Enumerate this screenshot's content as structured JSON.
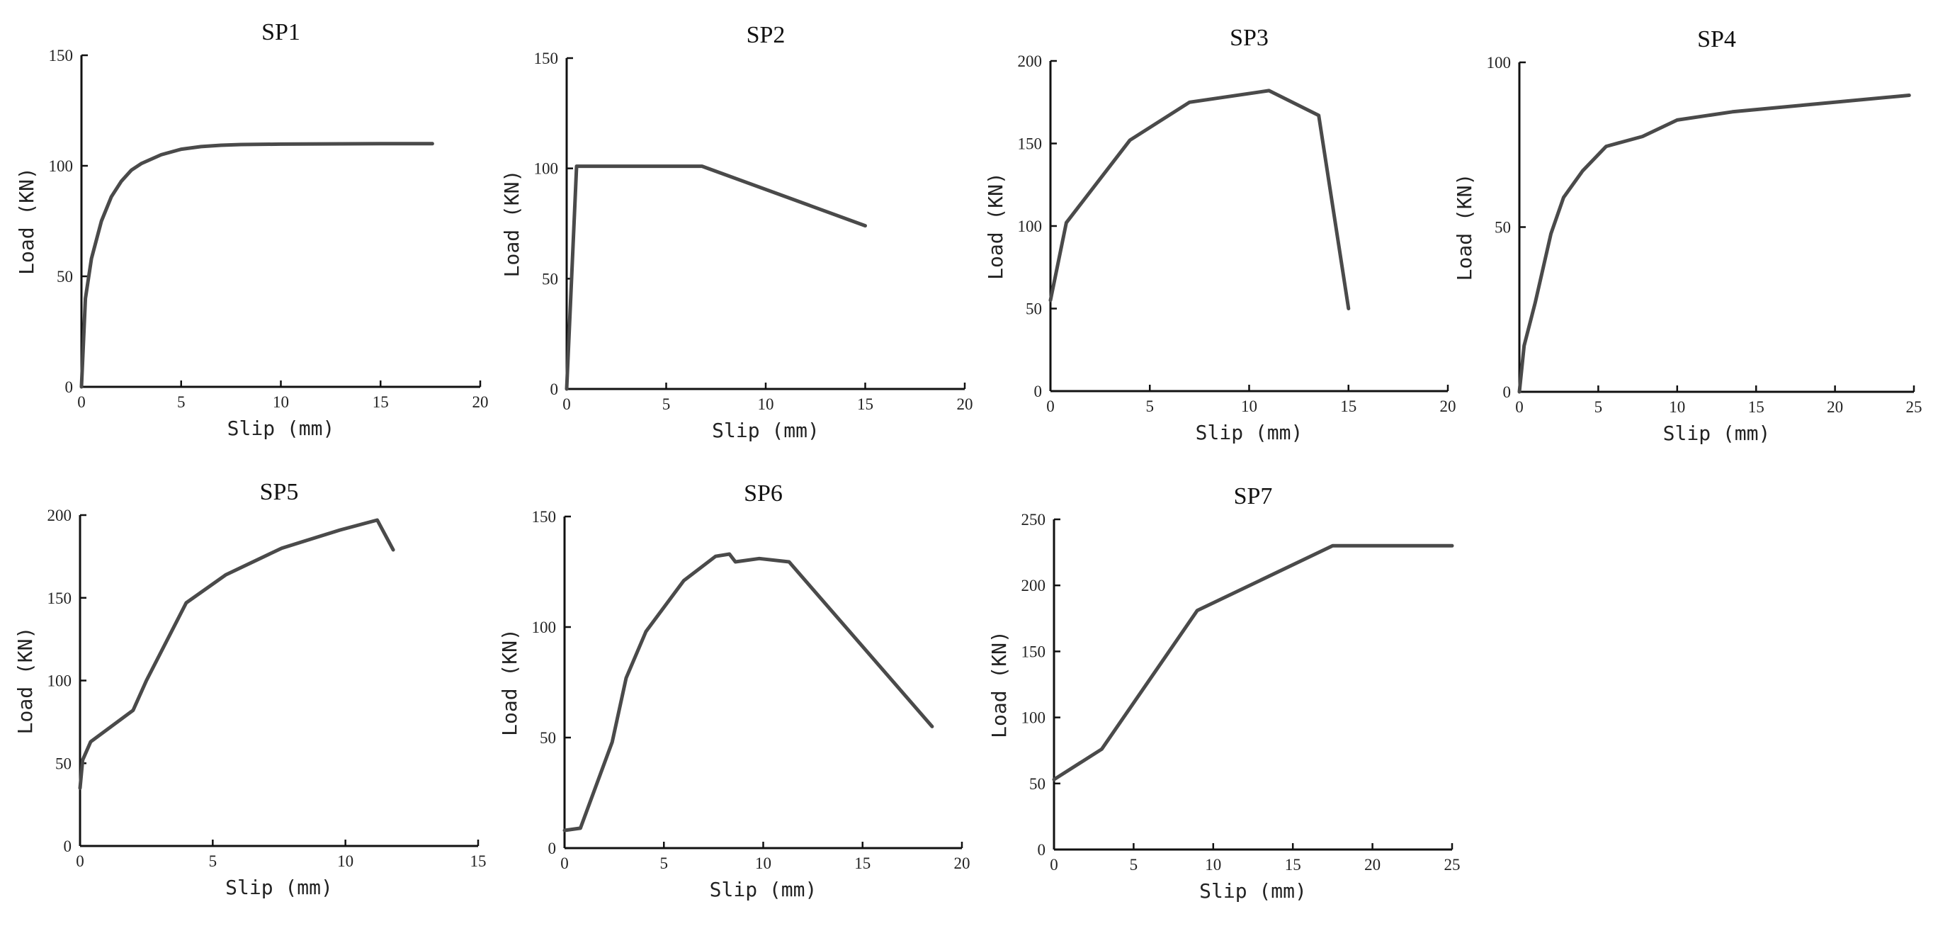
{
  "chart_data": [
    {
      "type": "line",
      "title": "SP1",
      "xlabel": "Slip (mm)",
      "ylabel": "Load (KN)",
      "xlim": [
        0,
        20
      ],
      "ylim": [
        0,
        150
      ],
      "xticks": [
        "0",
        "5",
        "10",
        "15",
        "20"
      ],
      "yticks": [
        "0",
        "50",
        "100",
        "150"
      ],
      "series": [
        {
          "name": "SP1",
          "x": [
            0,
            0.2,
            0.5,
            1,
            1.5,
            2,
            2.5,
            3,
            4,
            5,
            6,
            7,
            8,
            10,
            12,
            15,
            17.6
          ],
          "y": [
            0,
            40,
            58,
            75,
            86,
            93,
            98,
            101,
            105,
            107.5,
            108.7,
            109.3,
            109.6,
            109.8,
            109.9,
            110,
            110
          ]
        }
      ]
    },
    {
      "type": "line",
      "title": "SP2",
      "xlabel": "Slip (mm)",
      "ylabel": "Load (KN)",
      "xlim": [
        0,
        20
      ],
      "ylim": [
        0,
        150
      ],
      "xticks": [
        "0",
        "5",
        "10",
        "15",
        "20"
      ],
      "yticks": [
        "0",
        "50",
        "100",
        "150"
      ],
      "series": [
        {
          "name": "SP2",
          "x": [
            0,
            0.5,
            6.8,
            15
          ],
          "y": [
            0,
            101,
            101,
            74
          ]
        }
      ]
    },
    {
      "type": "line",
      "title": "SP3",
      "xlabel": "Slip (mm)",
      "ylabel": "Load (KN)",
      "xlim": [
        0,
        20
      ],
      "ylim": [
        0,
        200
      ],
      "xticks": [
        "0",
        "5",
        "10",
        "15",
        "20"
      ],
      "yticks": [
        "0",
        "50",
        "100",
        "150",
        "200"
      ],
      "series": [
        {
          "name": "SP3",
          "x": [
            0,
            0.8,
            4,
            7,
            11,
            13.5,
            15
          ],
          "y": [
            55,
            102,
            152,
            175,
            182,
            167,
            50
          ]
        }
      ]
    },
    {
      "type": "line",
      "title": "SP4",
      "xlabel": "Slip (mm)",
      "ylabel": "Load (KN)",
      "xlim": [
        0,
        25
      ],
      "ylim": [
        0,
        100
      ],
      "xticks": [
        "0",
        "5",
        "10",
        "15",
        "20",
        "25"
      ],
      "yticks": [
        "0",
        "50",
        "100"
      ],
      "series": [
        {
          "name": "SP4",
          "x": [
            0,
            0.3,
            1,
            2,
            2.8,
            4,
            5.5,
            7.8,
            10,
            13.5,
            18,
            24.7
          ],
          "y": [
            0,
            14,
            27,
            48,
            59,
            67,
            74.5,
            77.5,
            82.5,
            85,
            87,
            90
          ]
        }
      ]
    },
    {
      "type": "line",
      "title": "SP5",
      "xlabel": "Slip (mm)",
      "ylabel": "Load (KN)",
      "xlim": [
        0,
        15
      ],
      "ylim": [
        0,
        200
      ],
      "xticks": [
        "0",
        "5",
        "10",
        "15"
      ],
      "yticks": [
        "0",
        "50",
        "100",
        "150",
        "200"
      ],
      "series": [
        {
          "name": "SP5",
          "x": [
            0,
            0.1,
            0.4,
            2,
            2.5,
            4,
            5.5,
            7.6,
            9.8,
            11.2,
            11.8
          ],
          "y": [
            35,
            52,
            63,
            82,
            100,
            147,
            164,
            180,
            191,
            197,
            179
          ]
        }
      ]
    },
    {
      "type": "line",
      "title": "SP6",
      "xlabel": "Slip (mm)",
      "ylabel": "Load (KN)",
      "xlim": [
        0,
        20
      ],
      "ylim": [
        0,
        150
      ],
      "xticks": [
        "0",
        "5",
        "10",
        "15",
        "20"
      ],
      "yticks": [
        "0",
        "50",
        "100",
        "150"
      ],
      "series": [
        {
          "name": "SP6",
          "x": [
            0,
            0.8,
            2.4,
            3.1,
            4.1,
            6,
            7.6,
            8.3,
            8.6,
            9.8,
            11.3,
            18.5
          ],
          "y": [
            8,
            9,
            48,
            77,
            98,
            121,
            132,
            133,
            129.5,
            131,
            129.5,
            55
          ]
        }
      ]
    },
    {
      "type": "line",
      "title": "SP7",
      "xlabel": "Slip (mm)",
      "ylabel": "Load (KN)",
      "xlim": [
        0,
        25
      ],
      "ylim": [
        0,
        250
      ],
      "xticks": [
        "0",
        "5",
        "10",
        "15",
        "20",
        "25"
      ],
      "yticks": [
        "0",
        "50",
        "100",
        "150",
        "200",
        "250"
      ],
      "series": [
        {
          "name": "SP7",
          "x": [
            0,
            3,
            9,
            17.5,
            25
          ],
          "y": [
            53,
            76,
            181,
            230,
            230
          ]
        }
      ]
    }
  ]
}
